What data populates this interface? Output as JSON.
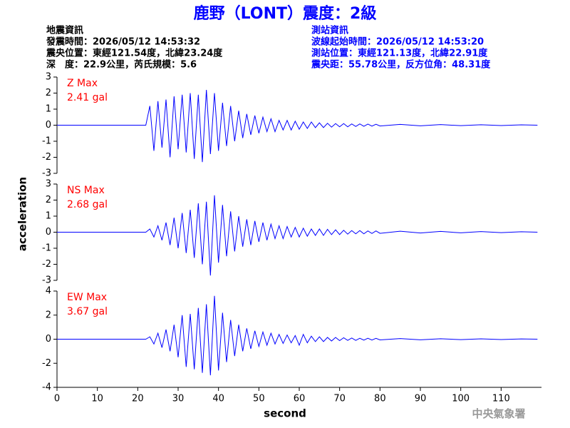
{
  "header": {
    "title": "鹿野（LONT）震度：2級",
    "left": [
      "地震資訊",
      "發震時間：2026/05/12 14:53:32",
      "震央位置：東經121.54度，北緯23.24度",
      "深　度：22.9公里，芮氏規模：5.6"
    ],
    "right": [
      "測站資訊",
      "波線起始時間：2026/05/12 14:53:20",
      "測站位置：東經121.13度，北緯22.91度",
      "震央距：55.78公里，反方位角：48.31度"
    ]
  },
  "chart_data": [
    {
      "type": "line",
      "annotations": [
        "Z Max",
        "2.41 gal"
      ],
      "x": [
        0,
        22,
        23,
        24,
        25,
        26,
        27,
        28,
        29,
        30,
        31,
        32,
        33,
        34,
        35,
        36,
        37,
        38,
        39,
        40,
        41,
        42,
        43,
        44,
        45,
        46,
        47,
        48,
        49,
        50,
        51,
        52,
        53,
        54,
        55,
        56,
        57,
        58,
        59,
        60,
        61,
        62,
        63,
        64,
        65,
        66,
        67,
        68,
        69,
        70,
        71,
        72,
        73,
        74,
        75,
        76,
        77,
        78,
        79,
        80,
        85,
        90,
        95,
        100,
        105,
        110,
        115,
        119
      ],
      "xlim": [
        0,
        120
      ],
      "series": [
        {
          "color": "#0000ff",
          "values": [
            0,
            0,
            1.2,
            -1.6,
            1.5,
            -1.4,
            1.6,
            -2.0,
            1.8,
            -1.5,
            1.9,
            -1.7,
            2.0,
            -2.1,
            1.9,
            -2.3,
            2.2,
            -1.8,
            2.0,
            -1.6,
            1.4,
            -1.3,
            1.2,
            -1.0,
            0.9,
            -0.8,
            0.7,
            -0.6,
            0.6,
            -0.5,
            0.5,
            -0.4,
            0.4,
            -0.4,
            0.3,
            -0.3,
            0.3,
            -0.3,
            0.25,
            -0.25,
            0.2,
            -0.2,
            0.2,
            -0.15,
            0.15,
            -0.15,
            0.12,
            -0.12,
            0.1,
            -0.1,
            0.1,
            -0.1,
            0.08,
            -0.08,
            0.08,
            -0.07,
            0.07,
            -0.06,
            0.06,
            -0.05,
            0.05,
            -0.04,
            0.04,
            -0.03,
            0.03,
            -0.02,
            0.02,
            0
          ]
        }
      ],
      "ylim": [
        -3,
        3
      ],
      "yticks": [
        -3,
        -2,
        -1,
        0,
        1,
        2,
        3
      ]
    },
    {
      "type": "line",
      "annotations": [
        "NS Max",
        "2.68 gal"
      ],
      "y_label": "acceleration",
      "x": [
        0,
        22,
        23,
        24,
        25,
        26,
        27,
        28,
        29,
        30,
        31,
        32,
        33,
        34,
        35,
        36,
        37,
        38,
        39,
        40,
        41,
        42,
        43,
        44,
        45,
        46,
        47,
        48,
        49,
        50,
        51,
        52,
        53,
        54,
        55,
        56,
        57,
        58,
        59,
        60,
        61,
        62,
        63,
        64,
        65,
        66,
        67,
        68,
        69,
        70,
        71,
        72,
        73,
        74,
        75,
        76,
        77,
        78,
        79,
        80,
        85,
        90,
        95,
        100,
        105,
        110,
        115,
        119
      ],
      "xlim": [
        0,
        120
      ],
      "series": [
        {
          "color": "#0000ff",
          "values": [
            0,
            0,
            0.2,
            -0.3,
            0.4,
            -0.5,
            0.6,
            -0.8,
            0.9,
            -1.0,
            1.2,
            -1.3,
            1.4,
            -1.6,
            1.8,
            -2.0,
            1.9,
            -2.7,
            2.3,
            -1.9,
            1.7,
            -1.5,
            1.3,
            -1.2,
            1.0,
            -0.9,
            0.8,
            -0.8,
            0.7,
            -0.6,
            0.6,
            -0.5,
            0.5,
            -0.4,
            0.4,
            -0.4,
            0.35,
            -0.3,
            0.3,
            -0.3,
            0.25,
            -0.25,
            0.2,
            -0.2,
            0.2,
            -0.2,
            0.18,
            -0.15,
            0.15,
            -0.15,
            0.12,
            -0.12,
            0.1,
            -0.1,
            0.1,
            -0.1,
            0.08,
            -0.08,
            0.08,
            -0.07,
            0.06,
            -0.05,
            0.05,
            -0.04,
            0.04,
            -0.03,
            0.03,
            0
          ]
        }
      ],
      "ylim": [
        -3,
        3
      ],
      "yticks": [
        -3,
        -2,
        -1,
        0,
        1,
        2,
        3
      ]
    },
    {
      "type": "line",
      "annotations": [
        "EW Max",
        "3.67 gal"
      ],
      "x_label": "second",
      "x": [
        0,
        22,
        23,
        24,
        25,
        26,
        27,
        28,
        29,
        30,
        31,
        32,
        33,
        34,
        35,
        36,
        37,
        38,
        39,
        40,
        41,
        42,
        43,
        44,
        45,
        46,
        47,
        48,
        49,
        50,
        51,
        52,
        53,
        54,
        55,
        56,
        57,
        58,
        59,
        60,
        61,
        62,
        63,
        64,
        65,
        66,
        67,
        68,
        69,
        70,
        71,
        72,
        73,
        74,
        75,
        76,
        77,
        78,
        79,
        80,
        85,
        90,
        95,
        100,
        105,
        110,
        115,
        119
      ],
      "xlim": [
        0,
        120
      ],
      "xticks": [
        0,
        10,
        20,
        30,
        40,
        50,
        60,
        70,
        80,
        90,
        100,
        110
      ],
      "series": [
        {
          "color": "#0000ff",
          "values": [
            0,
            0,
            0.2,
            -0.4,
            0.5,
            -0.7,
            0.8,
            -1.0,
            1.2,
            -1.5,
            2.0,
            -2.3,
            2.1,
            -2.5,
            2.6,
            -2.8,
            2.9,
            -3.0,
            3.6,
            -2.6,
            2.2,
            -1.9,
            1.6,
            -1.4,
            1.2,
            -1.0,
            0.9,
            -0.8,
            0.7,
            -0.6,
            0.6,
            -0.5,
            0.5,
            -0.4,
            0.4,
            -0.35,
            0.35,
            -0.3,
            0.3,
            -0.5,
            0.4,
            -0.3,
            0.25,
            -0.2,
            0.2,
            -0.2,
            0.15,
            -0.15,
            0.15,
            -0.12,
            0.12,
            -0.1,
            0.1,
            -0.1,
            0.08,
            -0.08,
            0.08,
            -0.07,
            0.07,
            -0.06,
            0.05,
            -0.05,
            0.04,
            -0.04,
            0.03,
            -0.03,
            0.02,
            0
          ]
        }
      ],
      "ylim": [
        -4,
        4
      ],
      "yticks": [
        -4,
        -2,
        0,
        2,
        4
      ]
    }
  ],
  "footer": "中央氣象署"
}
